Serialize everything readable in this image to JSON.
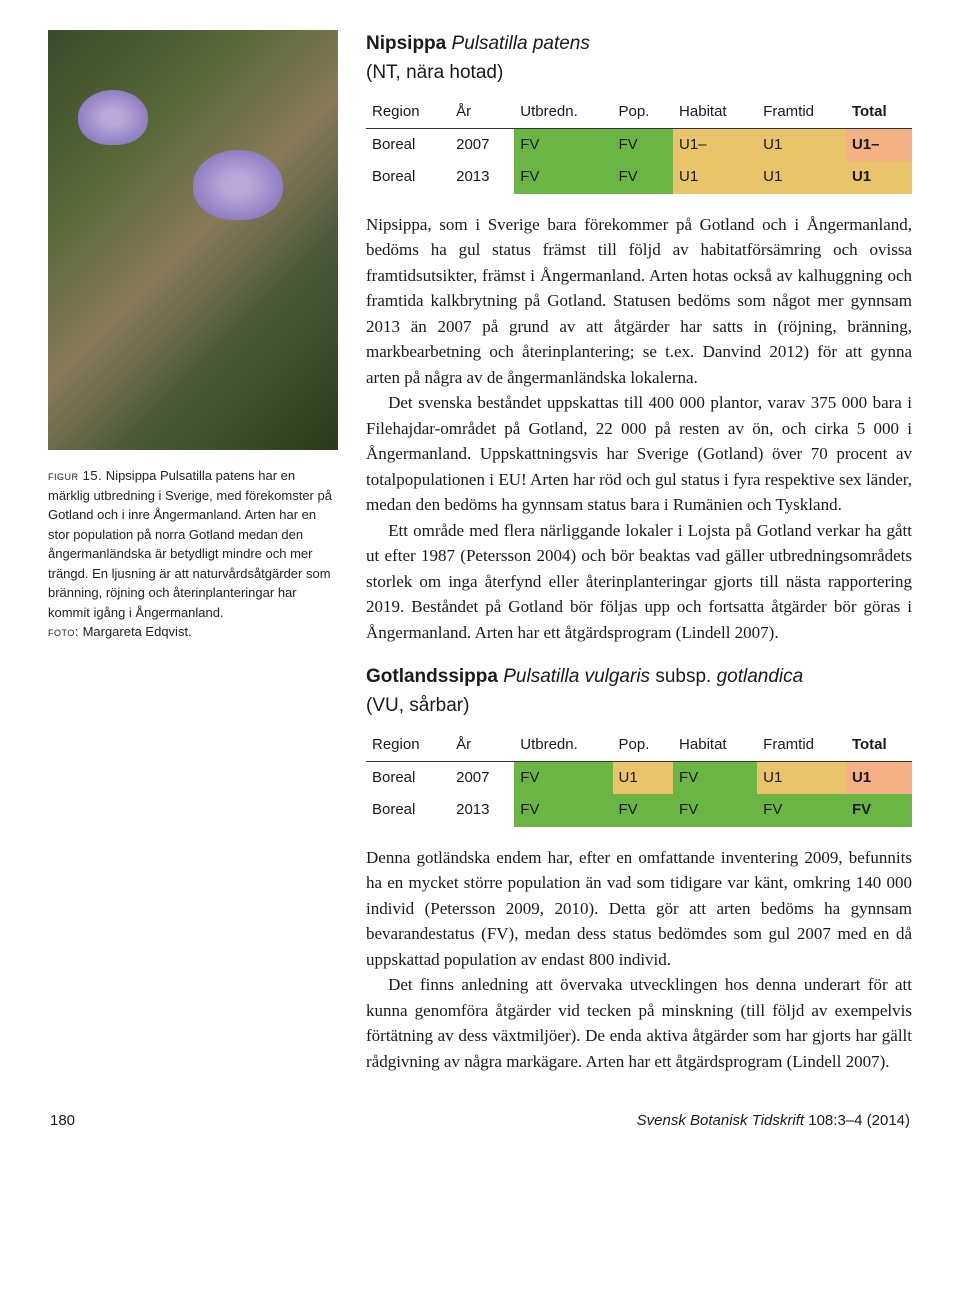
{
  "species1": {
    "common": "Nipsippa",
    "latin": "Pulsatilla patens",
    "status_line": "(NT, nära hotad)"
  },
  "table1": {
    "headers": [
      "Region",
      "År",
      "Utbredn.",
      "Pop.",
      "Habitat",
      "Framtid",
      "Total"
    ],
    "rows": [
      {
        "region": "Boreal",
        "year": "2007",
        "vals": [
          "FV",
          "FV",
          "U1–",
          "U1",
          "U1–"
        ],
        "colors": [
          "#6bb544",
          "#6bb544",
          "#e9c46a",
          "#e9c46a",
          "#f4b183"
        ]
      },
      {
        "region": "Boreal",
        "year": "2013",
        "vals": [
          "FV",
          "FV",
          "U1",
          "U1",
          "U1"
        ],
        "colors": [
          "#6bb544",
          "#6bb544",
          "#e9c46a",
          "#e9c46a",
          "#e9c46a"
        ]
      }
    ]
  },
  "caption": {
    "label": "figur 15.",
    "text": " Nipsippa Pulsatilla patens har en märklig utbredning i Sverige, med förekomster på Gotland och i inre Ångermanland. Arten har en stor population på norra Gotland medan den ångermanländska är betydligt mindre och mer trängd. En ljusning är att naturvårdsåtgärder som bränning, röjning och återinplanteringar har kommit igång i Ångermanland.",
    "credit_label": "foto:",
    "credit": " Margareta Edqvist."
  },
  "body1": {
    "p1": "Nipsippa, som i Sverige bara förekommer på Gotland och i Ångermanland, bedöms ha gul status främst till följd av habitatförsämring och ovissa framtidsutsikter, främst i Ångermanland. Arten hotas också av kalhuggning och framtida kalkbrytning på Gotland. Statusen bedöms som något mer gynnsam 2013 än 2007 på grund av att åtgärder har satts in (röjning, bränning, markbearbetning och återinplantering; se t.ex. Danvind 2012) för att gynna arten på några av de ångermanländska lokalerna.",
    "p2": "Det svenska beståndet uppskattas till 400 000 plantor, varav 375 000 bara i Filehajdar-området på Gotland, 22 000 på resten av ön, och cirka 5 000 i Ångermanland. Uppskattningsvis har Sverige (Gotland) över 70 procent av totalpopulationen i EU! Arten har röd och gul status i fyra respektive sex länder, medan den bedöms ha gynnsam status bara i Rumänien och Tyskland.",
    "p3": "Ett område med flera närliggande lokaler i Lojsta på Gotland verkar ha gått ut efter 1987 (Petersson 2004) och bör beaktas vad gäller utbredningsområdets storlek om inga återfynd eller återinplanteringar gjorts till nästa rapportering 2019. Beståndet på Gotland bör följas upp och fortsatta åtgärder bör göras i Ångermanland. Arten har ett åtgärdsprogram (Lindell 2007)."
  },
  "species2": {
    "common": "Gotlandssippa",
    "latin": "Pulsatilla vulgaris",
    "sub": " subsp. ",
    "sub_latin": "gotlandica",
    "status_line": "(VU, sårbar)"
  },
  "table2": {
    "headers": [
      "Region",
      "År",
      "Utbredn.",
      "Pop.",
      "Habitat",
      "Framtid",
      "Total"
    ],
    "rows": [
      {
        "region": "Boreal",
        "year": "2007",
        "vals": [
          "FV",
          "U1",
          "FV",
          "U1",
          "U1"
        ],
        "colors": [
          "#6bb544",
          "#e9c46a",
          "#6bb544",
          "#e9c46a",
          "#f4b183"
        ]
      },
      {
        "region": "Boreal",
        "year": "2013",
        "vals": [
          "FV",
          "FV",
          "FV",
          "FV",
          "FV"
        ],
        "colors": [
          "#6bb544",
          "#6bb544",
          "#6bb544",
          "#6bb544",
          "#6bb544"
        ]
      }
    ]
  },
  "body2": {
    "p1": "Denna gotländska endem har, efter en omfattande inventering 2009, befunnits ha en mycket större population än vad som tidigare var känt, omkring 140 000 individ (Petersson 2009, 2010). Detta gör att arten bedöms ha gynnsam bevarandestatus (FV), medan dess status bedömdes som gul 2007 med en då uppskattad population av endast 800 individ.",
    "p2": "Det finns anledning att övervaka utvecklingen hos denna underart för att kunna genomföra åtgärder vid tecken på minskning (till följd av exempelvis förtätning av dess växtmiljöer). De enda aktiva åtgärder som har gjorts har gällt rådgivning av några markägare. Arten har ett åtgärdsprogram (Lindell 2007)."
  },
  "footer": {
    "page": "180",
    "journal": "Svensk Botanisk Tidskrift",
    "issue": " 108:3–4",
    "year": " (2014)"
  }
}
